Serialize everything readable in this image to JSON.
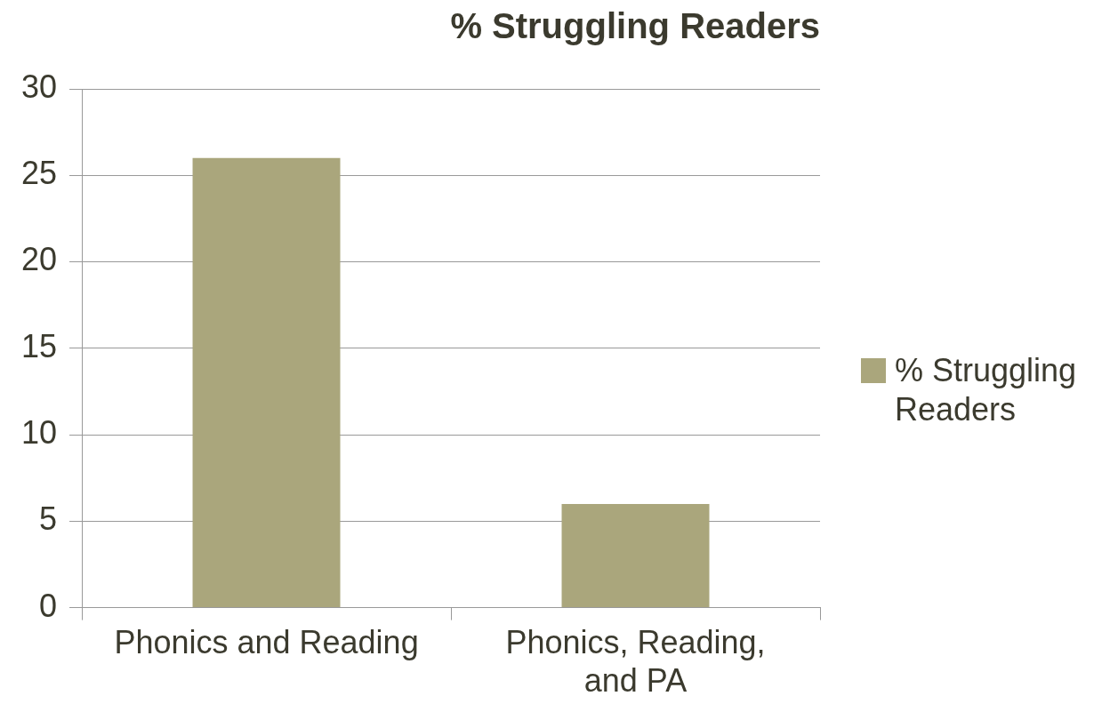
{
  "chart_data": {
    "type": "bar",
    "title": "% Struggling Readers",
    "categories": [
      "Phonics and Reading",
      "Phonics, Reading, and PA"
    ],
    "series": [
      {
        "name": "% Struggling Readers",
        "color": "#aaa67c",
        "values": [
          26,
          6
        ]
      }
    ],
    "ylim": [
      0,
      30
    ],
    "yticks": [
      0,
      5,
      10,
      15,
      20,
      25,
      30
    ],
    "grid": "y",
    "legend": "right"
  }
}
